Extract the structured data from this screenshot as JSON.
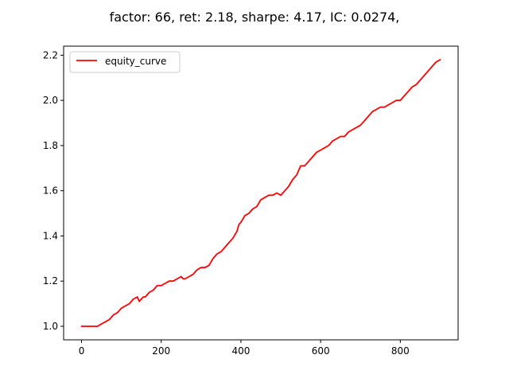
{
  "chart_data": {
    "type": "line",
    "title": "factor: 66, ret: 2.18, sharpe: 4.17, IC: 0.0274,",
    "xlabel": "",
    "ylabel": "",
    "xlim": [
      -45,
      945
    ],
    "ylim": [
      0.94,
      2.24
    ],
    "xticks": [
      0,
      200,
      400,
      600,
      800
    ],
    "yticks": [
      1.0,
      1.2,
      1.4,
      1.6,
      1.8,
      2.0,
      2.2
    ],
    "xtick_labels": [
      "0",
      "200",
      "400",
      "600",
      "800"
    ],
    "ytick_labels": [
      "1.0",
      "1.2",
      "1.4",
      "1.6",
      "1.8",
      "2.0",
      "2.2"
    ],
    "grid": false,
    "legend": {
      "placement": "top-left",
      "entries": [
        "equity_curve"
      ]
    },
    "series": [
      {
        "name": "equity_curve",
        "color": "#ff0000",
        "x": [
          0,
          40,
          50,
          60,
          70,
          80,
          90,
          100,
          110,
          120,
          130,
          140,
          145,
          150,
          155,
          160,
          170,
          180,
          190,
          200,
          210,
          220,
          230,
          240,
          250,
          255,
          260,
          270,
          280,
          290,
          300,
          310,
          320,
          330,
          340,
          350,
          360,
          370,
          380,
          390,
          395,
          400,
          410,
          420,
          430,
          440,
          450,
          460,
          470,
          480,
          490,
          500,
          510,
          520,
          530,
          540,
          550,
          560,
          570,
          580,
          590,
          600,
          610,
          620,
          630,
          640,
          650,
          660,
          670,
          680,
          690,
          700,
          710,
          720,
          730,
          740,
          750,
          760,
          770,
          780,
          790,
          800,
          810,
          820,
          830,
          840,
          850,
          860,
          870,
          880,
          890,
          900
        ],
        "y": [
          1.0,
          1.0,
          1.01,
          1.02,
          1.03,
          1.05,
          1.06,
          1.08,
          1.09,
          1.1,
          1.12,
          1.13,
          1.11,
          1.12,
          1.13,
          1.13,
          1.15,
          1.16,
          1.18,
          1.18,
          1.19,
          1.2,
          1.2,
          1.21,
          1.22,
          1.21,
          1.21,
          1.22,
          1.23,
          1.25,
          1.26,
          1.26,
          1.27,
          1.3,
          1.32,
          1.33,
          1.35,
          1.37,
          1.39,
          1.42,
          1.45,
          1.46,
          1.49,
          1.5,
          1.52,
          1.53,
          1.56,
          1.57,
          1.58,
          1.58,
          1.59,
          1.58,
          1.6,
          1.62,
          1.65,
          1.67,
          1.71,
          1.71,
          1.73,
          1.75,
          1.77,
          1.78,
          1.79,
          1.8,
          1.82,
          1.83,
          1.84,
          1.84,
          1.86,
          1.87,
          1.88,
          1.89,
          1.91,
          1.93,
          1.95,
          1.96,
          1.97,
          1.97,
          1.98,
          1.99,
          2.0,
          2.0,
          2.02,
          2.04,
          2.06,
          2.07,
          2.09,
          2.11,
          2.13,
          2.15,
          2.17,
          2.18
        ]
      }
    ]
  }
}
